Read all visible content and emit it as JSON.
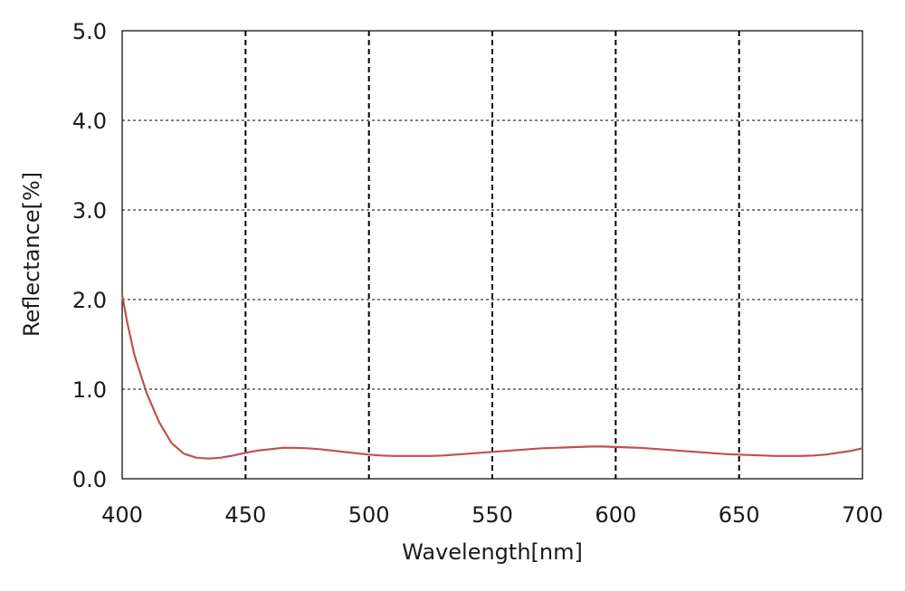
{
  "chart_data": {
    "type": "line",
    "title": "",
    "xlabel": "Wavelength[nm]",
    "ylabel": "Reflectance[%]",
    "xlim": [
      400,
      700
    ],
    "ylim": [
      0,
      5
    ],
    "x_ticks": [
      "400",
      "450",
      "500",
      "550",
      "600",
      "650",
      "700"
    ],
    "y_ticks": [
      "0.0",
      "1.0",
      "2.0",
      "3.0",
      "4.0",
      "5.0"
    ],
    "grid": true,
    "legend": "none",
    "series": [
      {
        "color": "#c0504d",
        "x": [
          400,
          402,
          405,
          408,
          410,
          415,
          420,
          425,
          430,
          435,
          440,
          445,
          450,
          455,
          460,
          465,
          470,
          475,
          480,
          485,
          490,
          495,
          500,
          505,
          510,
          515,
          520,
          525,
          530,
          535,
          540,
          545,
          550,
          555,
          560,
          565,
          570,
          575,
          580,
          585,
          590,
          595,
          600,
          605,
          610,
          615,
          620,
          625,
          630,
          635,
          640,
          645,
          650,
          655,
          660,
          665,
          670,
          675,
          680,
          685,
          690,
          695,
          700
        ],
        "y": [
          2.05,
          1.75,
          1.38,
          1.12,
          0.95,
          0.63,
          0.4,
          0.28,
          0.235,
          0.225,
          0.235,
          0.26,
          0.29,
          0.315,
          0.33,
          0.345,
          0.345,
          0.34,
          0.33,
          0.315,
          0.3,
          0.285,
          0.27,
          0.26,
          0.255,
          0.255,
          0.255,
          0.255,
          0.26,
          0.27,
          0.28,
          0.29,
          0.3,
          0.31,
          0.32,
          0.33,
          0.34,
          0.345,
          0.35,
          0.355,
          0.36,
          0.36,
          0.355,
          0.35,
          0.345,
          0.335,
          0.325,
          0.315,
          0.305,
          0.295,
          0.285,
          0.275,
          0.27,
          0.265,
          0.26,
          0.255,
          0.255,
          0.255,
          0.26,
          0.27,
          0.29,
          0.31,
          0.34
        ]
      }
    ]
  }
}
